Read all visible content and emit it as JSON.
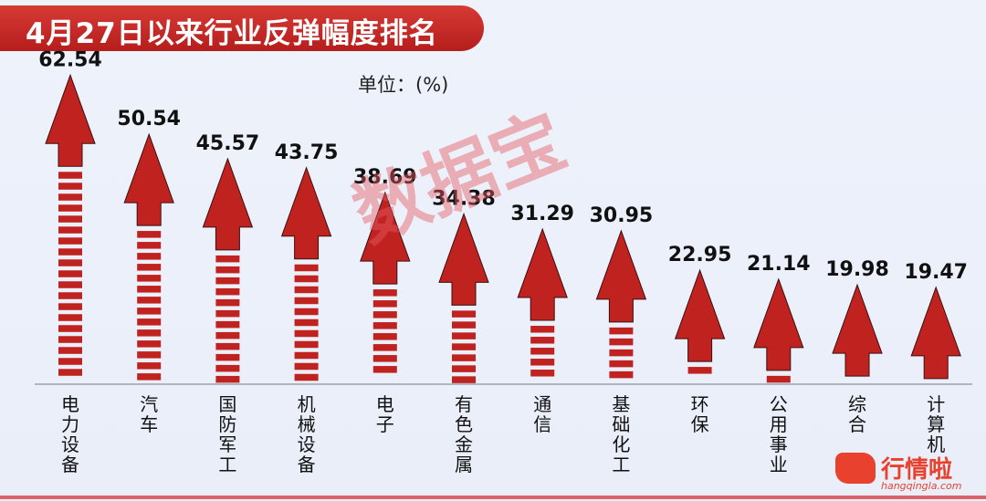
{
  "title": "4月27日以来行业反弹幅度排名",
  "unit_label": "单位：(%)",
  "watermark": "数据宝",
  "logo": {
    "name": "行情啦",
    "url_text": "hangqingla.com"
  },
  "colors": {
    "arrow": "#c0221f",
    "stripe": "#c0221f",
    "title_bg": "#c8302c",
    "baseline": "#d9636a"
  },
  "chart_data": {
    "type": "bar",
    "title": "4月27日以来行业反弹幅度排名",
    "ylabel": "单位：(%)",
    "categories": [
      "电力设备",
      "汽车",
      "国防军工",
      "机械设备",
      "电子",
      "有色金属",
      "通信",
      "基础化工",
      "环保",
      "公用事业",
      "综合",
      "计算机"
    ],
    "values": [
      62.54,
      50.54,
      45.57,
      43.75,
      38.69,
      34.38,
      31.29,
      30.95,
      22.95,
      21.14,
      19.98,
      19.47
    ]
  }
}
